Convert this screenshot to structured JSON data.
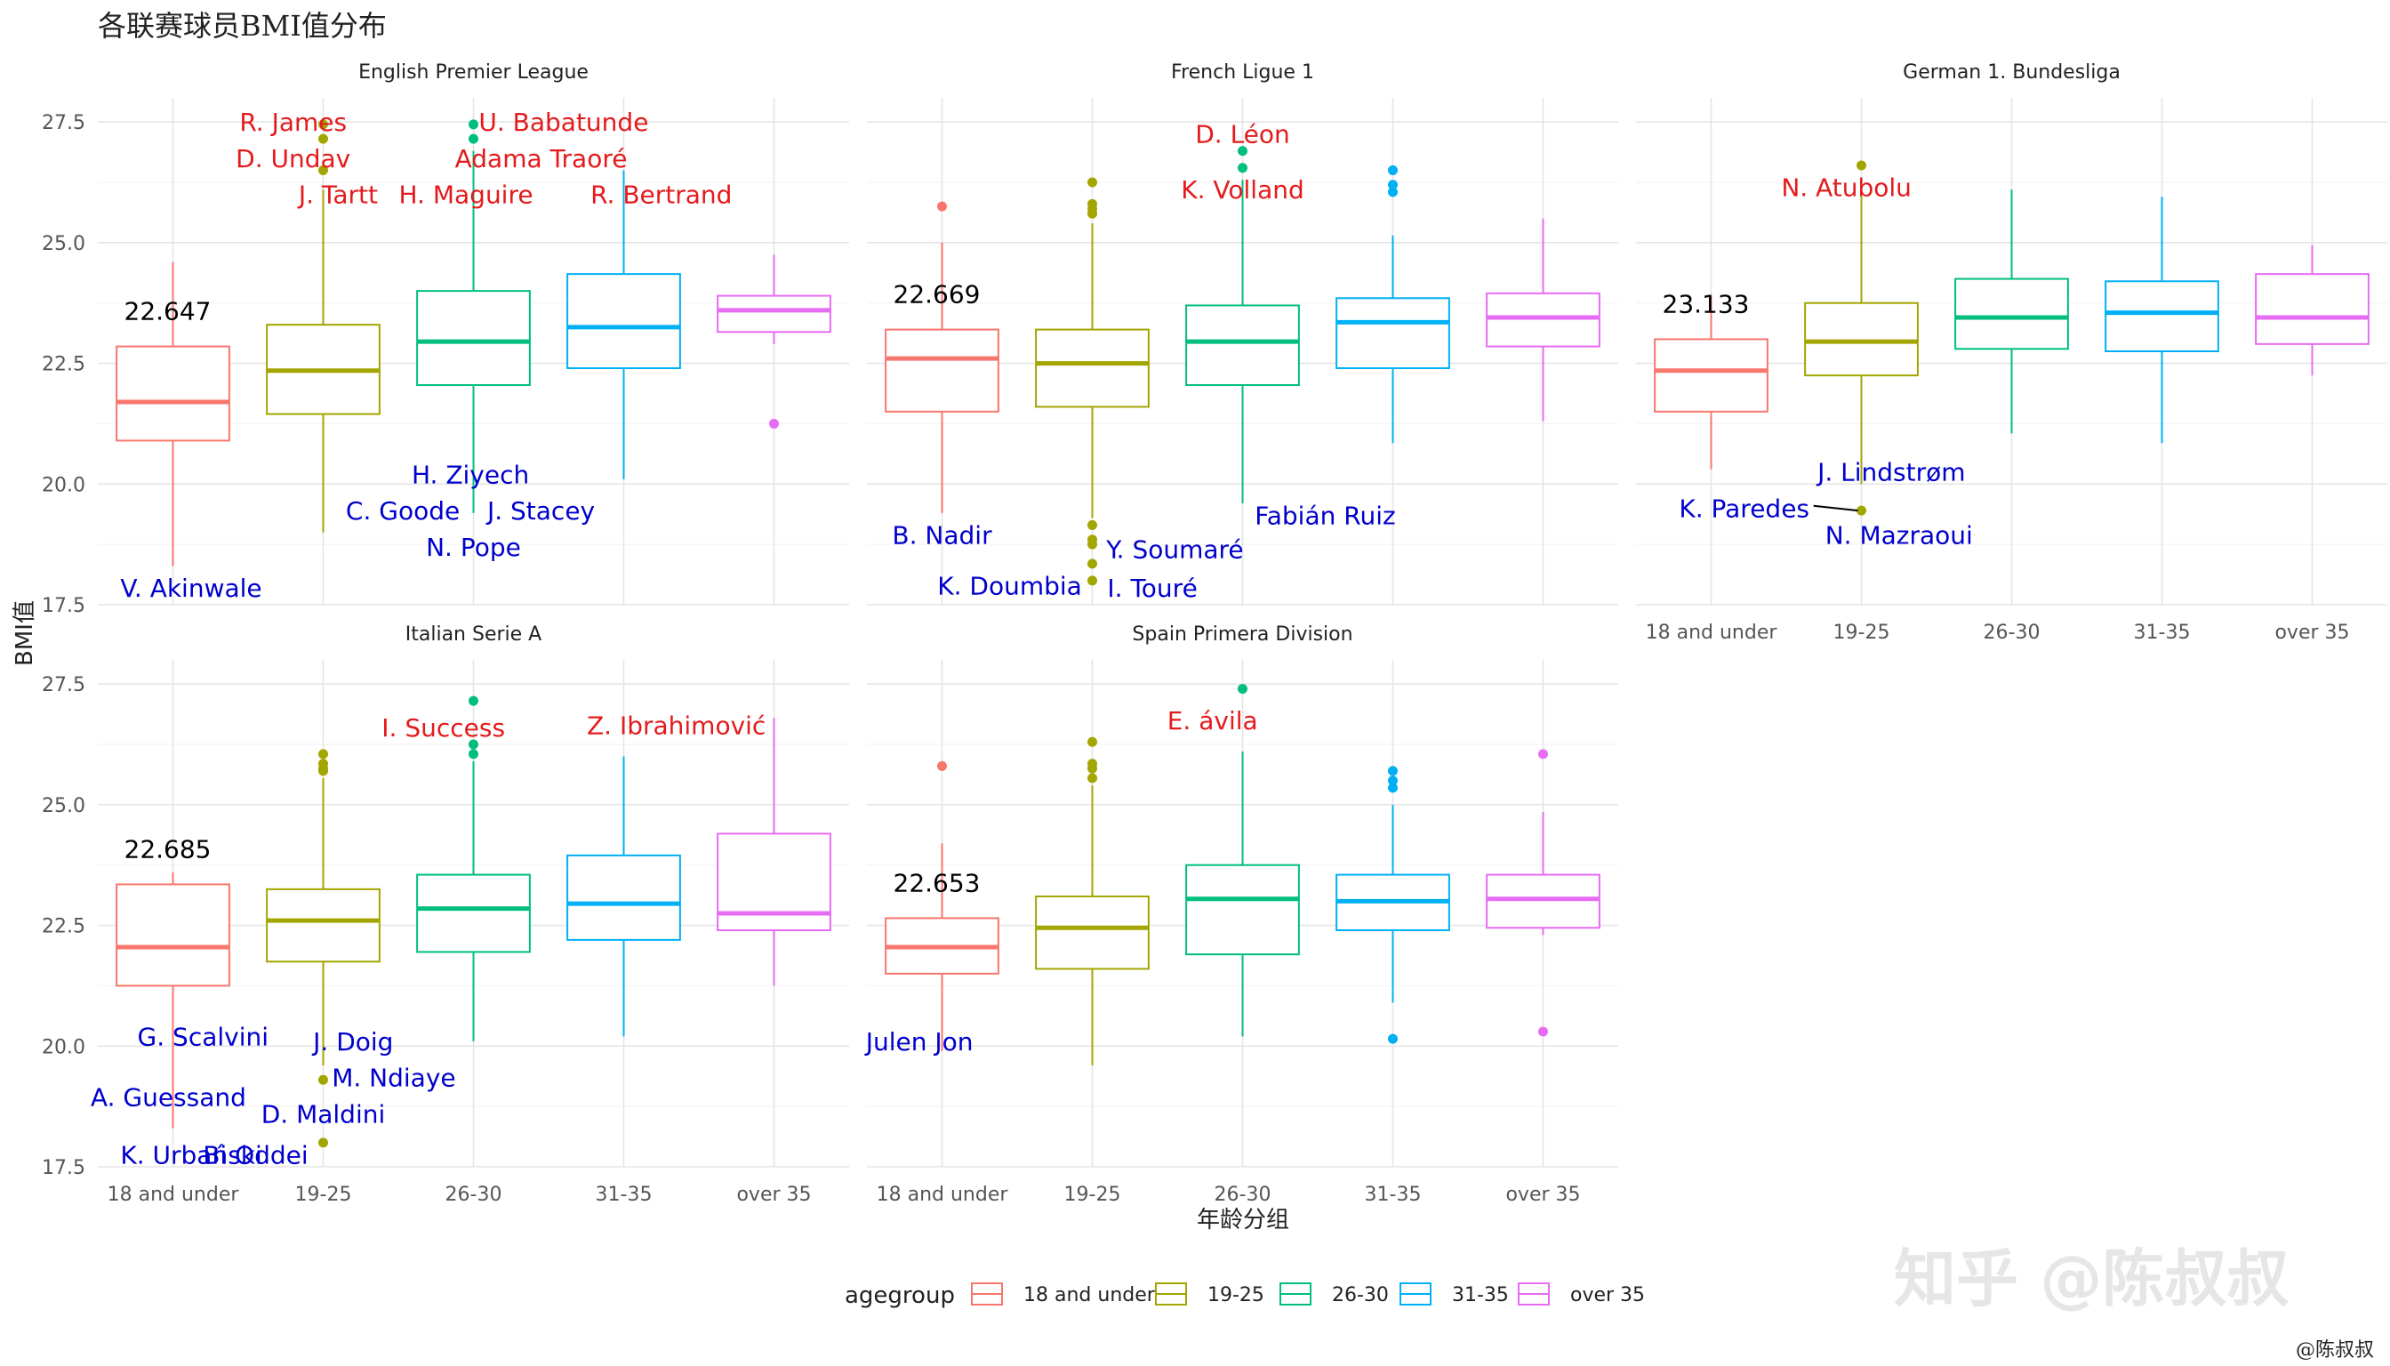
{
  "title": "各联赛球员BMI值分布",
  "watermark": "知乎 @陈叔叔",
  "credit": "@陈叔叔",
  "chart_data": {
    "type": "boxplot",
    "xlabel": "年龄分组",
    "ylabel": "BMI值",
    "ylim": [
      17.5,
      28.0
    ],
    "yticks": [
      "17.5",
      "20.0",
      "22.5",
      "25.0",
      "27.5"
    ],
    "categories": [
      "18 and under",
      "19-25",
      "26-30",
      "31-35",
      "over 35"
    ],
    "colors": [
      "#F8766D",
      "#A3A500",
      "#00BF7D",
      "#00B0F6",
      "#E76BF3"
    ],
    "label_colors": {
      "high": "#E41A1C",
      "low": "#0000CD",
      "annotation": "#000000"
    },
    "legend": {
      "title": "agegroup",
      "position": "bottom",
      "items": [
        "18 and under",
        "19-25",
        "26-30",
        "31-35",
        "over 35"
      ]
    },
    "panels": [
      {
        "name": "English Premier League",
        "annotation": "22.647",
        "boxes": [
          {
            "q1": 20.9,
            "median": 21.7,
            "q3": 22.85,
            "lo": 18.3,
            "hi": 24.6,
            "outliers": []
          },
          {
            "q1": 21.45,
            "median": 22.35,
            "q3": 23.3,
            "lo": 19.0,
            "hi": 26.1,
            "outliers": [
              27.45,
              27.15,
              26.5
            ]
          },
          {
            "q1": 22.05,
            "median": 22.95,
            "q3": 24.0,
            "lo": 19.4,
            "hi": 26.9,
            "outliers": [
              27.45,
              27.15
            ]
          },
          {
            "q1": 22.4,
            "median": 23.25,
            "q3": 24.35,
            "lo": 20.1,
            "hi": 26.5,
            "outliers": []
          },
          {
            "q1": 23.15,
            "median": 23.6,
            "q3": 23.9,
            "lo": 22.9,
            "hi": 24.75,
            "outliers": [
              21.25
            ]
          }
        ],
        "labels": [
          {
            "text": "R. James",
            "kind": "high",
            "cat": 0.8,
            "y": 27.5,
            "anchor": "middle"
          },
          {
            "text": "D. Undav",
            "kind": "high",
            "cat": 0.8,
            "y": 26.75,
            "anchor": "middle"
          },
          {
            "text": "J. Tartt",
            "kind": "high",
            "cat": 1.1,
            "y": 26.0,
            "anchor": "middle"
          },
          {
            "text": "H. Maguire",
            "kind": "high",
            "cat": 1.95,
            "y": 26.0,
            "anchor": "middle"
          },
          {
            "text": "U. Babatunde",
            "kind": "high",
            "cat": 2.6,
            "y": 27.5,
            "anchor": "middle"
          },
          {
            "text": "Adama Traoré",
            "kind": "high",
            "cat": 2.45,
            "y": 26.75,
            "anchor": "middle"
          },
          {
            "text": "R. Bertrand",
            "kind": "high",
            "cat": 3.25,
            "y": 26.0,
            "anchor": "middle"
          },
          {
            "text": "H. Ziyech",
            "kind": "low",
            "cat": 1.98,
            "y": 20.2,
            "anchor": "middle"
          },
          {
            "text": "C. Goode",
            "kind": "low",
            "cat": 1.53,
            "y": 19.45,
            "anchor": "middle"
          },
          {
            "text": "J. Stacey",
            "kind": "low",
            "cat": 2.45,
            "y": 19.45,
            "anchor": "middle"
          },
          {
            "text": "N. Pope",
            "kind": "low",
            "cat": 2.0,
            "y": 18.7,
            "anchor": "middle"
          },
          {
            "text": "V. Akinwale",
            "kind": "low",
            "cat": -0.35,
            "y": 17.85,
            "anchor": "start"
          }
        ]
      },
      {
        "name": "French Ligue 1",
        "annotation": "22.669",
        "boxes": [
          {
            "q1": 21.5,
            "median": 22.6,
            "q3": 23.2,
            "lo": 19.4,
            "hi": 25.0,
            "outliers": [
              25.75
            ]
          },
          {
            "q1": 21.6,
            "median": 22.5,
            "q3": 23.2,
            "lo": 19.3,
            "hi": 25.4,
            "outliers": [
              26.25,
              25.8,
              25.7,
              25.6,
              19.15,
              18.85,
              18.75,
              18.35,
              18.0
            ]
          },
          {
            "q1": 22.05,
            "median": 22.95,
            "q3": 23.7,
            "lo": 19.6,
            "hi": 26.3,
            "outliers": [
              26.9,
              26.55
            ]
          },
          {
            "q1": 22.4,
            "median": 23.35,
            "q3": 23.85,
            "lo": 20.85,
            "hi": 25.15,
            "outliers": [
              26.5,
              26.2,
              26.05
            ]
          },
          {
            "q1": 22.85,
            "median": 23.45,
            "q3": 23.95,
            "lo": 21.3,
            "hi": 25.5,
            "outliers": []
          }
        ],
        "labels": [
          {
            "text": "D. Léon",
            "kind": "high",
            "cat": 2.0,
            "y": 27.25,
            "anchor": "middle"
          },
          {
            "text": "K. Volland",
            "kind": "high",
            "cat": 2.0,
            "y": 26.1,
            "anchor": "middle"
          },
          {
            "text": "B. Nadir",
            "kind": "low",
            "cat": 0.0,
            "y": 18.95,
            "anchor": "middle"
          },
          {
            "text": "K. Doumbia",
            "kind": "low",
            "cat": 0.45,
            "y": 17.9,
            "anchor": "middle"
          },
          {
            "text": "Y. Soumaré",
            "kind": "low",
            "cat": 1.55,
            "y": 18.65,
            "anchor": "middle"
          },
          {
            "text": "I. Touré",
            "kind": "low",
            "cat": 1.4,
            "y": 17.85,
            "anchor": "middle"
          },
          {
            "text": "Fabián Ruiz",
            "kind": "low",
            "cat": 2.55,
            "y": 19.35,
            "anchor": "middle"
          }
        ]
      },
      {
        "name": "German 1. Bundesliga",
        "annotation": "23.133",
        "boxes": [
          {
            "q1": 21.5,
            "median": 22.35,
            "q3": 23.0,
            "lo": 20.3,
            "hi": 23.9,
            "outliers": []
          },
          {
            "q1": 22.25,
            "median": 22.95,
            "q3": 23.75,
            "lo": 20.0,
            "hi": 26.0,
            "outliers": [
              26.6,
              19.45
            ]
          },
          {
            "q1": 22.8,
            "median": 23.45,
            "q3": 24.25,
            "lo": 21.05,
            "hi": 26.1,
            "outliers": []
          },
          {
            "q1": 22.75,
            "median": 23.55,
            "q3": 24.2,
            "lo": 20.85,
            "hi": 25.95,
            "outliers": []
          },
          {
            "q1": 22.9,
            "median": 23.45,
            "q3": 24.35,
            "lo": 22.25,
            "hi": 24.95,
            "outliers": []
          }
        ],
        "labels": [
          {
            "text": "N. Atubolu",
            "kind": "high",
            "cat": 0.9,
            "y": 26.15,
            "anchor": "middle"
          },
          {
            "text": "J. Lindstrøm",
            "kind": "low",
            "cat": 1.2,
            "y": 20.25,
            "anchor": "middle"
          },
          {
            "text": "K. Paredes",
            "kind": "low",
            "cat": 0.22,
            "y": 19.5,
            "anchor": "middle"
          },
          {
            "text": "N. Mazraoui",
            "kind": "low",
            "cat": 1.25,
            "y": 18.95,
            "anchor": "middle"
          }
        ]
      },
      {
        "name": "Italian Serie A",
        "annotation": "22.685",
        "boxes": [
          {
            "q1": 21.25,
            "median": 22.05,
            "q3": 23.35,
            "lo": 18.3,
            "hi": 23.6,
            "outliers": []
          },
          {
            "q1": 21.75,
            "median": 22.6,
            "q3": 23.25,
            "lo": 19.6,
            "hi": 25.55,
            "outliers": [
              26.05,
              25.85,
              25.75,
              25.7,
              19.3,
              18.0
            ]
          },
          {
            "q1": 21.95,
            "median": 22.85,
            "q3": 23.55,
            "lo": 20.1,
            "hi": 25.9,
            "outliers": [
              27.15,
              26.25,
              26.05
            ]
          },
          {
            "q1": 22.2,
            "median": 22.95,
            "q3": 23.95,
            "lo": 20.2,
            "hi": 26.0,
            "outliers": []
          },
          {
            "q1": 22.4,
            "median": 22.75,
            "q3": 24.4,
            "lo": 21.25,
            "hi": 26.8,
            "outliers": []
          }
        ],
        "labels": [
          {
            "text": "I. Success",
            "kind": "high",
            "cat": 1.8,
            "y": 26.6,
            "anchor": "middle"
          },
          {
            "text": "Z. Ibrahimović",
            "kind": "high",
            "cat": 3.35,
            "y": 26.65,
            "anchor": "middle"
          },
          {
            "text": "G. Scalvini",
            "kind": "low",
            "cat": 0.2,
            "y": 20.2,
            "anchor": "middle"
          },
          {
            "text": "J. Doig",
            "kind": "low",
            "cat": 1.2,
            "y": 20.1,
            "anchor": "middle"
          },
          {
            "text": "M. Ndiaye",
            "kind": "low",
            "cat": 1.47,
            "y": 19.35,
            "anchor": "middle"
          },
          {
            "text": "A. Guessand",
            "kind": "low",
            "cat": -0.03,
            "y": 18.95,
            "anchor": "middle"
          },
          {
            "text": "D. Maldini",
            "kind": "low",
            "cat": 1.0,
            "y": 18.6,
            "anchor": "middle"
          },
          {
            "text": "K. Urbański",
            "kind": "low",
            "cat": -0.35,
            "y": 17.75,
            "anchor": "start"
          },
          {
            "text": "Bi Oddei",
            "kind": "low",
            "cat": 0.55,
            "y": 17.75,
            "anchor": "middle"
          }
        ]
      },
      {
        "name": "Spain Primera Division",
        "annotation": "22.653",
        "boxes": [
          {
            "q1": 21.5,
            "median": 22.05,
            "q3": 22.65,
            "lo": 19.9,
            "hi": 24.2,
            "outliers": [
              25.8
            ]
          },
          {
            "q1": 21.6,
            "median": 22.45,
            "q3": 23.1,
            "lo": 19.6,
            "hi": 25.4,
            "outliers": [
              26.3,
              25.85,
              25.75,
              25.55
            ]
          },
          {
            "q1": 21.9,
            "median": 23.05,
            "q3": 23.75,
            "lo": 20.2,
            "hi": 26.1,
            "outliers": [
              27.4
            ]
          },
          {
            "q1": 22.4,
            "median": 23.0,
            "q3": 23.55,
            "lo": 20.9,
            "hi": 25.0,
            "outliers": [
              25.7,
              25.5,
              25.35,
              20.15
            ]
          },
          {
            "q1": 22.45,
            "median": 23.05,
            "q3": 23.55,
            "lo": 22.3,
            "hi": 24.85,
            "outliers": [
              26.05,
              20.3
            ]
          }
        ],
        "labels": [
          {
            "text": "E. ávila",
            "kind": "high",
            "cat": 1.8,
            "y": 26.75,
            "anchor": "middle"
          },
          {
            "text": "Julen Jon",
            "kind": "low",
            "cat": -0.15,
            "y": 20.1,
            "anchor": "middle"
          }
        ]
      }
    ]
  }
}
